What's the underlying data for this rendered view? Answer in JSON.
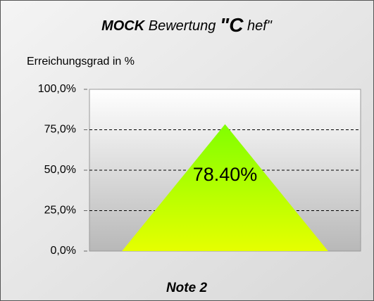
{
  "chart_data": {
    "type": "area",
    "title_parts": [
      "MOCK",
      "Bewertung",
      "\"C",
      "hef\""
    ],
    "ylabel": "Erreichungsgrad in %",
    "xlabel": "Note 2",
    "categories": [
      null,
      null,
      null
    ],
    "values": [
      0,
      78.4,
      0
    ],
    "value_labels": [
      null,
      "78.40%",
      null
    ],
    "color_top": "#80ff00",
    "color_bottom": "#e6ff00",
    "ylim": [
      0,
      100
    ],
    "yticks": [
      {
        "value": 0,
        "label": "0,0%"
      },
      {
        "value": 25,
        "label": "25,0%"
      },
      {
        "value": 50,
        "label": "50,0%"
      },
      {
        "value": 75,
        "label": "75,0%"
      },
      {
        "value": 100,
        "label": "100,0%"
      }
    ],
    "grid": true
  }
}
